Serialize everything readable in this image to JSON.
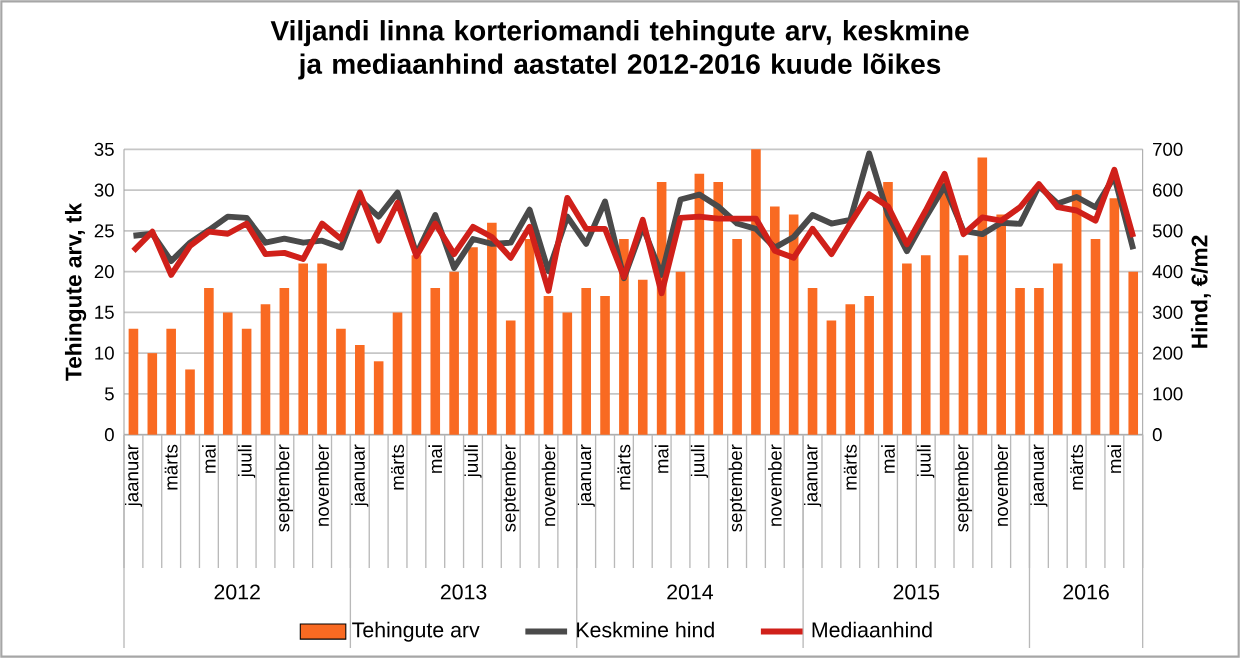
{
  "chart_data": {
    "type": "bar",
    "title": "Viljandi linna korteriomandi tehingute arv, keskmine ja mediaanhind aastatel 2012-2016 kuude lõikes",
    "ylabel": "Tehingute arv, tk",
    "y2label": "Hind, €/m2",
    "x": [
      "2012-01",
      "2012-02",
      "2012-03",
      "2012-04",
      "2012-05",
      "2012-06",
      "2012-07",
      "2012-08",
      "2012-09",
      "2012-10",
      "2012-11",
      "2012-12",
      "2013-01",
      "2013-02",
      "2013-03",
      "2013-04",
      "2013-05",
      "2013-06",
      "2013-07",
      "2013-08",
      "2013-09",
      "2013-10",
      "2013-11",
      "2013-12",
      "2014-01",
      "2014-02",
      "2014-03",
      "2014-04",
      "2014-05",
      "2014-06",
      "2014-07",
      "2014-08",
      "2014-09",
      "2014-10",
      "2014-11",
      "2014-12",
      "2015-01",
      "2015-02",
      "2015-03",
      "2015-04",
      "2015-05",
      "2015-06",
      "2015-07",
      "2015-08",
      "2015-09",
      "2015-10",
      "2015-11",
      "2015-12",
      "2016-01",
      "2016-02",
      "2016-03",
      "2016-04",
      "2016-05",
      "2016-06"
    ],
    "xlim": [
      "2011-12-16",
      "2016-06-16"
    ],
    "xticks": [
      {
        "value": "2012-01",
        "label": "jaanuar"
      },
      {
        "value": "2012-03",
        "label": "märts"
      },
      {
        "value": "2012-05",
        "label": "mai"
      },
      {
        "value": "2012-07",
        "label": "juuli"
      },
      {
        "value": "2012-09",
        "label": "september"
      },
      {
        "value": "2012-11",
        "label": "november"
      },
      {
        "value": "2013-01",
        "label": "jaanuar"
      },
      {
        "value": "2013-03",
        "label": "märts"
      },
      {
        "value": "2013-05",
        "label": "mai"
      },
      {
        "value": "2013-07",
        "label": "juuli"
      },
      {
        "value": "2013-09",
        "label": "september"
      },
      {
        "value": "2013-11",
        "label": "november"
      },
      {
        "value": "2014-01",
        "label": "jaanuar"
      },
      {
        "value": "2014-03",
        "label": "märts"
      },
      {
        "value": "2014-05",
        "label": "mai"
      },
      {
        "value": "2014-07",
        "label": "juuli"
      },
      {
        "value": "2014-09",
        "label": "september"
      },
      {
        "value": "2014-11",
        "label": "november"
      },
      {
        "value": "2015-01",
        "label": "jaanuar"
      },
      {
        "value": "2015-03",
        "label": "märts"
      },
      {
        "value": "2015-05",
        "label": "mai"
      },
      {
        "value": "2015-07",
        "label": "juuli"
      },
      {
        "value": "2015-09",
        "label": "september"
      },
      {
        "value": "2015-11",
        "label": "november"
      },
      {
        "value": "2016-01",
        "label": "jaanuar"
      },
      {
        "value": "2016-03",
        "label": "märts"
      },
      {
        "value": "2016-05",
        "label": "mai"
      }
    ],
    "ylim": [
      0,
      35
    ],
    "yticks": [
      0,
      5,
      10,
      15,
      20,
      25,
      30,
      35
    ],
    "y2lim": [
      0,
      700
    ],
    "y2ticks": [
      0,
      100,
      200,
      300,
      400,
      500,
      600,
      700
    ],
    "grid": "y",
    "legend": "bottom",
    "annotations": [
      "2012",
      "2013",
      "2014",
      "2015",
      "2016"
    ],
    "series": [
      {
        "name": "Tehingute arv",
        "color": "#f96a22",
        "values": [
          13,
          10,
          13,
          8,
          18,
          15,
          13,
          16,
          18,
          21,
          21,
          13,
          11,
          9,
          15,
          22,
          18,
          20,
          23,
          26,
          14,
          24,
          17,
          15,
          18,
          17,
          24,
          19,
          31,
          20,
          32,
          31,
          24,
          35,
          28,
          27,
          18,
          14,
          16,
          17,
          31,
          21,
          22,
          31,
          22,
          34,
          27,
          18,
          18,
          21,
          30,
          24,
          29,
          20
        ]
      },
      {
        "name": "Keskmine hind",
        "type": "line",
        "axis": "y2",
        "color": "#4a4a4a",
        "values": [
          488,
          493,
          426,
          471,
          502,
          535,
          532,
          471,
          481,
          471,
          476,
          459,
          577,
          535,
          594,
          443,
          539,
          409,
          480,
          468,
          471,
          552,
          401,
          535,
          468,
          572,
          384,
          510,
          392,
          577,
          589,
          560,
          518,
          505,
          459,
          485,
          539,
          518,
          527,
          690,
          540,
          450,
          533,
          610,
          500,
          492,
          520,
          517,
          610,
          567,
          583,
          558,
          633,
          455
        ]
      },
      {
        "name": "Mediaanhind",
        "type": "line",
        "axis": "y2",
        "color": "#d0201a",
        "values": [
          451,
          498,
          392,
          463,
          498,
          493,
          518,
          443,
          446,
          431,
          518,
          480,
          594,
          476,
          569,
          438,
          518,
          443,
          510,
          485,
          434,
          510,
          353,
          581,
          505,
          505,
          387,
          527,
          347,
          532,
          535,
          530,
          530,
          530,
          451,
          434,
          505,
          443,
          518,
          590,
          560,
          467,
          550,
          640,
          492,
          533,
          525,
          558,
          615,
          558,
          550,
          525,
          650,
          485
        ]
      }
    ]
  }
}
